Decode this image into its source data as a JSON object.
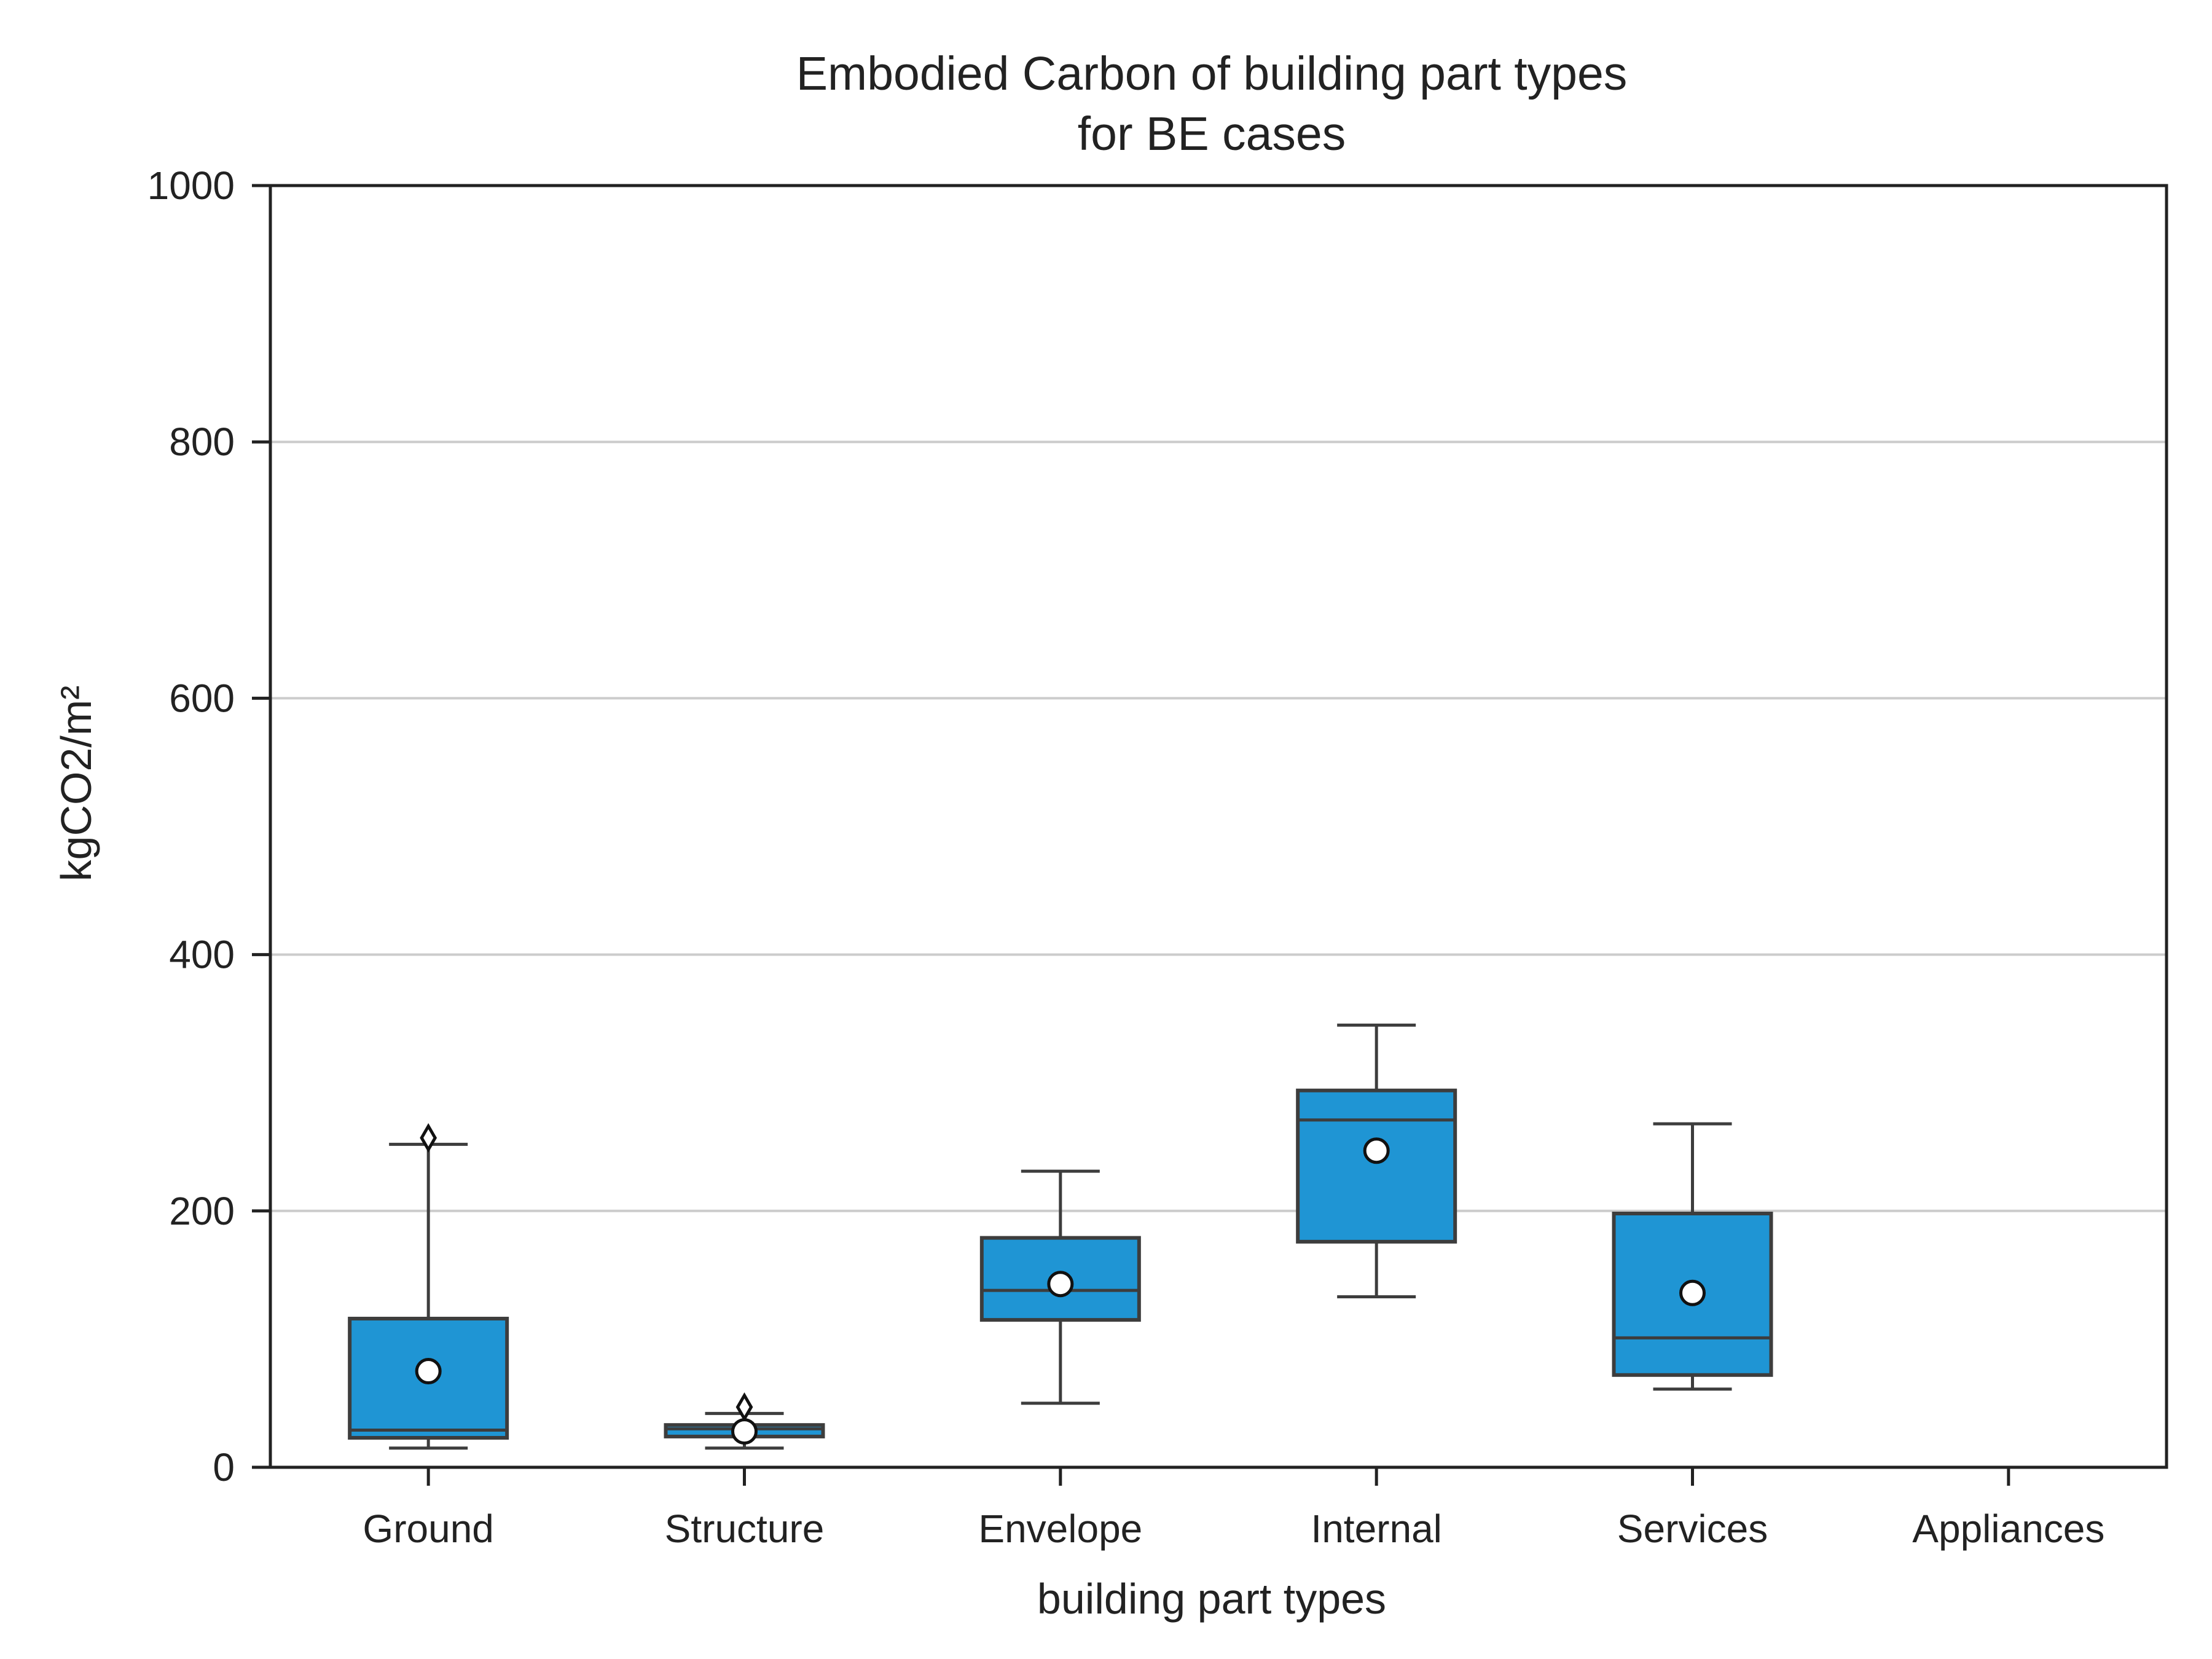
{
  "chart_data": {
    "type": "box",
    "title": "Embodied Carbon of building part types",
    "subtitle": "for BE cases",
    "xlabel": "building part types",
    "ylabel": "kgCO2/m²",
    "ylim": [
      0,
      1000
    ],
    "yticks": [
      0,
      200,
      400,
      600,
      800,
      1000
    ],
    "grid": "horizontal",
    "categories": [
      "Ground",
      "Structure",
      "Envelope",
      "Internal",
      "Services",
      "Appliances"
    ],
    "boxes": [
      {
        "category": "Ground",
        "whisker_low": 15,
        "q1": 23,
        "median": 29,
        "q3": 116,
        "whisker_high": 252,
        "mean": 75,
        "outliers": [
          257
        ]
      },
      {
        "category": "Structure",
        "whisker_low": 15,
        "q1": 24,
        "median": 30,
        "q3": 33,
        "whisker_high": 42,
        "mean": 28,
        "outliers": [
          47
        ]
      },
      {
        "category": "Envelope",
        "whisker_low": 50,
        "q1": 115,
        "median": 138,
        "q3": 179,
        "whisker_high": 231,
        "mean": 143,
        "outliers": []
      },
      {
        "category": "Internal",
        "whisker_low": 133,
        "q1": 176,
        "median": 271,
        "q3": 294,
        "whisker_high": 345,
        "mean": 247,
        "outliers": []
      },
      {
        "category": "Services",
        "whisker_low": 61,
        "q1": 72,
        "median": 101,
        "q3": 198,
        "whisker_high": 268,
        "mean": 136,
        "outliers": []
      },
      {
        "category": "Appliances",
        "whisker_low": null,
        "q1": null,
        "median": null,
        "q3": null,
        "whisker_high": null,
        "mean": null,
        "outliers": []
      }
    ],
    "colors": {
      "box_fill": "#1f95d4",
      "box_edge": "#3d3d3d",
      "grid": "#cccccc",
      "axis": "#222222",
      "mean_fill": "#ffffff"
    }
  }
}
